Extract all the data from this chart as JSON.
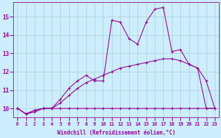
{
  "xlabel": "Windchill (Refroidissement éolien,°C)",
  "background_color": "#cceeff",
  "line_color": "#990099",
  "grid_color": "#aacccc",
  "xmin": 0,
  "xmax": 23,
  "ymin": 9.5,
  "ymax": 15.8,
  "yticks": [
    10,
    11,
    12,
    13,
    14,
    15
  ],
  "x_hours": [
    0,
    1,
    2,
    3,
    4,
    5,
    6,
    7,
    8,
    9,
    10,
    11,
    12,
    13,
    14,
    15,
    16,
    17,
    18,
    19,
    20,
    21,
    22,
    23
  ],
  "line1_y": [
    10.0,
    9.7,
    9.8,
    10.0,
    10.0,
    10.5,
    11.1,
    11.5,
    11.8,
    11.5,
    11.5,
    14.8,
    14.7,
    13.8,
    13.5,
    14.7,
    15.4,
    15.5,
    13.1,
    13.2,
    12.4,
    12.2,
    10.0,
    10.0
  ],
  "line2_y": [
    10.0,
    9.7,
    9.9,
    10.0,
    10.0,
    10.3,
    10.7,
    11.1,
    11.4,
    11.6,
    11.8,
    12.0,
    12.2,
    12.3,
    12.4,
    12.5,
    12.6,
    12.7,
    12.7,
    12.6,
    12.4,
    12.2,
    11.5,
    10.0
  ],
  "line3_y": [
    10.0,
    9.7,
    9.9,
    10.0,
    10.0,
    10.0,
    10.0,
    10.0,
    10.0,
    10.0,
    10.0,
    10.0,
    10.0,
    10.0,
    10.0,
    10.0,
    10.0,
    10.0,
    10.0,
    10.0,
    10.0,
    10.0,
    10.0,
    10.0
  ]
}
